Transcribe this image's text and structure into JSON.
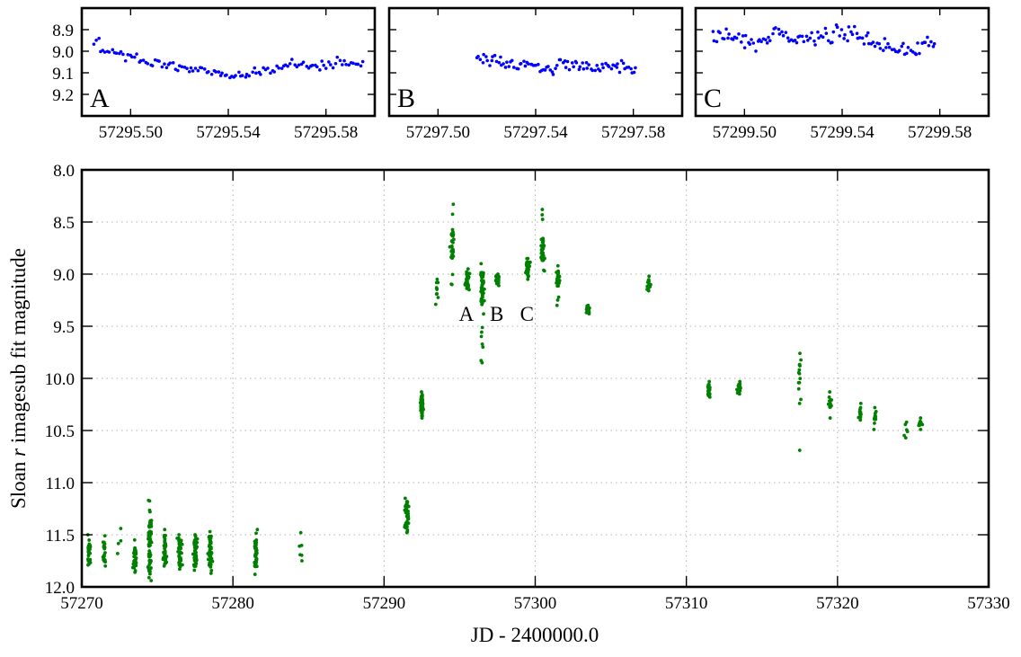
{
  "figure": {
    "background": "#ffffff",
    "main_point_color": "#008000",
    "inset_point_color": "#0000ff"
  },
  "chart_data": [
    {
      "id": "main",
      "type": "scatter",
      "title": "",
      "xlabel": "JD - 2400000.0",
      "ylabel_parts": [
        "Sloan ",
        "r",
        " imagesub fit magnitude"
      ],
      "ylabel": "Sloan r imagesub fit magnitude",
      "xlim": [
        57270,
        57330
      ],
      "ylim": [
        12.0,
        8.0
      ],
      "y_inverted": true,
      "grid": true,
      "xticks": [
        57270,
        57280,
        57290,
        57300,
        57310,
        57320,
        57330
      ],
      "xtick_labels": [
        "57270",
        "57280",
        "57290",
        "57300",
        "57310",
        "57320",
        "57330"
      ],
      "yticks": [
        8.0,
        8.5,
        9.0,
        9.5,
        10.0,
        10.5,
        11.0,
        11.5,
        12.0
      ],
      "ytick_labels": [
        "8.0",
        "8.5",
        "9.0",
        "9.5",
        "10.0",
        "10.5",
        "11.0",
        "11.5",
        "12.0"
      ],
      "annotations": [
        {
          "text": "A",
          "x": 57295.45,
          "y": 9.38
        },
        {
          "text": "B",
          "x": 57297.45,
          "y": 9.38
        },
        {
          "text": "C",
          "x": 57299.45,
          "y": 9.38
        }
      ],
      "series": [
        {
          "name": "nightly clusters",
          "color": "#008000",
          "clusters": [
            {
              "x": 57270.5,
              "min": 11.5,
              "max": 11.79,
              "core": [
                11.55,
                11.78
              ],
              "n": 28
            },
            {
              "x": 57271.5,
              "min": 11.51,
              "max": 11.8,
              "core": [
                11.57,
                11.78
              ],
              "n": 22
            },
            {
              "x": 57272.5,
              "min": 11.44,
              "max": 11.68,
              "core": [
                11.52,
                11.6
              ],
              "n": 4
            },
            {
              "x": 57273.5,
              "min": 11.55,
              "max": 11.86,
              "core": [
                11.6,
                11.82
              ],
              "n": 30
            },
            {
              "x": 57274.5,
              "min": 11.17,
              "max": 11.94,
              "core": [
                11.36,
                11.86
              ],
              "n": 70
            },
            {
              "x": 57275.5,
              "min": 11.45,
              "max": 11.8,
              "core": [
                11.5,
                11.78
              ],
              "n": 40
            },
            {
              "x": 57276.5,
              "min": 11.5,
              "max": 11.83,
              "core": [
                11.53,
                11.81
              ],
              "n": 50
            },
            {
              "x": 57277.5,
              "min": 11.5,
              "max": 11.84,
              "core": [
                11.54,
                11.82
              ],
              "n": 50
            },
            {
              "x": 57278.5,
              "min": 11.47,
              "max": 11.87,
              "core": [
                11.5,
                11.8
              ],
              "n": 50
            },
            {
              "x": 57281.5,
              "min": 11.45,
              "max": 11.88,
              "core": [
                11.55,
                11.82
              ],
              "n": 40
            },
            {
              "x": 57284.5,
              "min": 11.48,
              "max": 11.75,
              "core": [
                11.6,
                11.72
              ],
              "n": 6
            },
            {
              "x": 57291.5,
              "min": 11.15,
              "max": 11.48,
              "core": [
                11.18,
                11.44
              ],
              "n": 50
            },
            {
              "x": 57292.5,
              "min": 10.13,
              "max": 10.38,
              "core": [
                10.15,
                10.36
              ],
              "n": 50
            },
            {
              "x": 57293.5,
              "min": 9.05,
              "max": 9.29,
              "core": [
                9.08,
                9.26
              ],
              "n": 10
            },
            {
              "x": 57294.5,
              "min": 8.33,
              "max": 9.1,
              "core": [
                8.58,
                8.85
              ],
              "n": 40
            },
            {
              "x": 57295.5,
              "min": 8.95,
              "max": 9.15,
              "core": [
                8.98,
                9.12
              ],
              "n": 40
            },
            {
              "x": 57296.5,
              "min": 8.9,
              "max": 9.85,
              "core": [
                8.98,
                9.3
              ],
              "n": 60
            },
            {
              "x": 57297.5,
              "min": 9.0,
              "max": 9.11,
              "core": [
                9.02,
                9.09
              ],
              "n": 40
            },
            {
              "x": 57299.5,
              "min": 8.85,
              "max": 9.05,
              "core": [
                8.88,
                9.02
              ],
              "n": 40
            },
            {
              "x": 57300.5,
              "min": 8.38,
              "max": 8.97,
              "core": [
                8.65,
                8.88
              ],
              "n": 40
            },
            {
              "x": 57301.5,
              "min": 8.92,
              "max": 9.3,
              "core": [
                8.97,
                9.12
              ],
              "n": 30
            },
            {
              "x": 57303.5,
              "min": 9.3,
              "max": 9.38,
              "core": [
                9.31,
                9.37
              ],
              "n": 20
            },
            {
              "x": 57307.5,
              "min": 9.02,
              "max": 9.16,
              "core": [
                9.04,
                9.14
              ],
              "n": 20
            },
            {
              "x": 57311.5,
              "min": 10.03,
              "max": 10.18,
              "core": [
                10.05,
                10.16
              ],
              "n": 30
            },
            {
              "x": 57313.5,
              "min": 10.03,
              "max": 10.15,
              "core": [
                10.05,
                10.13
              ],
              "n": 25
            },
            {
              "x": 57317.5,
              "min": 9.76,
              "max": 10.24,
              "core": [
                9.8,
                10.22
              ],
              "n": 14,
              "outliers": [
                10.69
              ]
            },
            {
              "x": 57319.5,
              "min": 10.13,
              "max": 10.38,
              "core": [
                10.18,
                10.28
              ],
              "n": 14
            },
            {
              "x": 57321.5,
              "min": 10.24,
              "max": 10.4,
              "core": [
                10.27,
                10.38
              ],
              "n": 14
            },
            {
              "x": 57322.5,
              "min": 10.28,
              "max": 10.49,
              "core": [
                10.3,
                10.44
              ],
              "n": 14
            },
            {
              "x": 57324.5,
              "min": 10.42,
              "max": 10.57,
              "core": [
                10.44,
                10.55
              ],
              "n": 6
            },
            {
              "x": 57325.5,
              "min": 10.38,
              "max": 10.49,
              "core": [
                10.4,
                10.47
              ],
              "n": 8
            }
          ]
        }
      ]
    },
    {
      "id": "inset-A",
      "type": "scatter",
      "panel_label": "A",
      "xlim": [
        57295.48,
        57295.6
      ],
      "ylim": [
        9.3,
        8.8
      ],
      "y_inverted": true,
      "grid": false,
      "xticks": [
        57295.5,
        57295.54,
        57295.58
      ],
      "xtick_labels": [
        "57295.50",
        "57295.54",
        "57295.58"
      ],
      "yticks": [
        8.9,
        9.0,
        9.1,
        9.2
      ],
      "ytick_labels": [
        "8.9",
        "9.0",
        "9.1",
        "9.2"
      ],
      "show_ytick_labels": true,
      "color": "#0000ff",
      "trend": [
        [
          57295.485,
          8.955
        ],
        [
          57295.49,
          8.995
        ],
        [
          57295.5,
          9.03
        ],
        [
          57295.51,
          9.055
        ],
        [
          57295.52,
          9.075
        ],
        [
          57295.53,
          9.09
        ],
        [
          57295.54,
          9.1
        ],
        [
          57295.545,
          9.11
        ],
        [
          57295.55,
          9.095
        ],
        [
          57295.56,
          9.075
        ],
        [
          57295.57,
          9.05
        ],
        [
          57295.575,
          9.07
        ],
        [
          57295.585,
          9.045
        ],
        [
          57295.595,
          9.065
        ]
      ],
      "n": 120,
      "scatter_sd": 0.012
    },
    {
      "id": "inset-B",
      "type": "scatter",
      "panel_label": "B",
      "xlim": [
        57297.48,
        57297.6
      ],
      "ylim": [
        9.3,
        8.8
      ],
      "y_inverted": true,
      "grid": false,
      "xticks": [
        57297.5,
        57297.54,
        57297.58
      ],
      "xtick_labels": [
        "57297.50",
        "57297.54",
        "57297.58"
      ],
      "yticks": [
        8.9,
        9.0,
        9.1,
        9.2
      ],
      "ytick_labels": [],
      "show_ytick_labels": false,
      "color": "#0000ff",
      "trend": [
        [
          57297.516,
          9.03
        ],
        [
          57297.53,
          9.06
        ],
        [
          57297.545,
          9.075
        ],
        [
          57297.56,
          9.065
        ],
        [
          57297.581,
          9.075
        ]
      ],
      "n": 90,
      "scatter_sd": 0.016
    },
    {
      "id": "inset-C",
      "type": "scatter",
      "panel_label": "C",
      "xlim": [
        57299.48,
        57299.6
      ],
      "ylim": [
        9.3,
        8.8
      ],
      "y_inverted": true,
      "grid": false,
      "xticks": [
        57299.5,
        57299.54,
        57299.58
      ],
      "xtick_labels": [
        "57299.50",
        "57299.54",
        "57299.58"
      ],
      "yticks": [
        8.9,
        9.0,
        9.1,
        9.2
      ],
      "ytick_labels": [],
      "show_ytick_labels": false,
      "color": "#0000ff",
      "trend": [
        [
          57299.487,
          8.92
        ],
        [
          57299.495,
          8.925
        ],
        [
          57299.505,
          8.96
        ],
        [
          57299.513,
          8.91
        ],
        [
          57299.52,
          8.955
        ],
        [
          57299.53,
          8.94
        ],
        [
          57299.538,
          8.925
        ],
        [
          57299.545,
          8.905
        ],
        [
          57299.553,
          8.96
        ],
        [
          57299.56,
          8.985
        ],
        [
          57299.57,
          8.995
        ],
        [
          57299.578,
          8.96
        ]
      ],
      "n": 120,
      "scatter_sd": 0.018
    }
  ]
}
